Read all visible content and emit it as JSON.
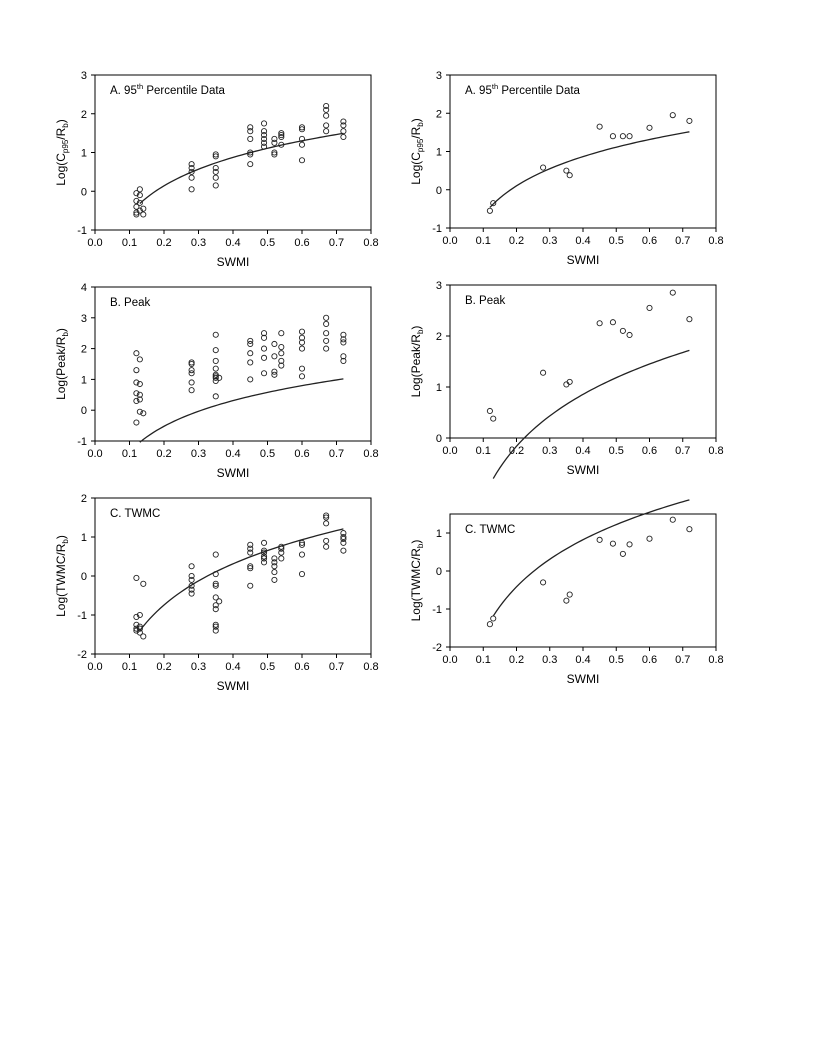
{
  "chart_data": [
    {
      "type": "scatter",
      "panel_label": "A. 95",
      "panel_label_sup": "th",
      "panel_label_rest": " Percentile Data",
      "xlabel": "SWMI",
      "ylabel_main": "Log(C",
      "ylabel_sub1": "p95",
      "ylabel_mid": "/R",
      "ylabel_sub2": "b",
      "ylabel_end": ")",
      "xlim": [
        0.0,
        0.8
      ],
      "ylim": [
        -1,
        3
      ],
      "xticks": [
        "0.0",
        "0.1",
        "0.2",
        "0.3",
        "0.4",
        "0.5",
        "0.6",
        "0.7",
        "0.8"
      ],
      "yticks": [
        "-1",
        "0",
        "1",
        "2",
        "3"
      ],
      "points": [
        [
          0.12,
          -0.05
        ],
        [
          0.12,
          -0.25
        ],
        [
          0.12,
          -0.4
        ],
        [
          0.12,
          -0.55
        ],
        [
          0.12,
          -0.6
        ],
        [
          0.13,
          0.05
        ],
        [
          0.13,
          -0.1
        ],
        [
          0.13,
          -0.3
        ],
        [
          0.13,
          -0.5
        ],
        [
          0.14,
          -0.45
        ],
        [
          0.14,
          -0.6
        ],
        [
          0.28,
          0.7
        ],
        [
          0.28,
          0.6
        ],
        [
          0.28,
          0.5
        ],
        [
          0.28,
          0.35
        ],
        [
          0.28,
          0.05
        ],
        [
          0.35,
          0.95
        ],
        [
          0.35,
          0.9
        ],
        [
          0.35,
          0.6
        ],
        [
          0.35,
          0.5
        ],
        [
          0.35,
          0.35
        ],
        [
          0.35,
          0.15
        ],
        [
          0.45,
          1.65
        ],
        [
          0.45,
          1.55
        ],
        [
          0.45,
          1.35
        ],
        [
          0.45,
          1.0
        ],
        [
          0.45,
          0.95
        ],
        [
          0.45,
          0.7
        ],
        [
          0.49,
          1.75
        ],
        [
          0.49,
          1.55
        ],
        [
          0.49,
          1.45
        ],
        [
          0.49,
          1.35
        ],
        [
          0.49,
          1.25
        ],
        [
          0.49,
          1.15
        ],
        [
          0.52,
          1.35
        ],
        [
          0.52,
          1.25
        ],
        [
          0.52,
          1.0
        ],
        [
          0.52,
          0.95
        ],
        [
          0.54,
          1.5
        ],
        [
          0.54,
          1.45
        ],
        [
          0.54,
          1.4
        ],
        [
          0.54,
          1.2
        ],
        [
          0.6,
          1.65
        ],
        [
          0.6,
          1.6
        ],
        [
          0.6,
          1.35
        ],
        [
          0.6,
          1.2
        ],
        [
          0.6,
          0.8
        ],
        [
          0.67,
          2.2
        ],
        [
          0.67,
          2.1
        ],
        [
          0.67,
          1.95
        ],
        [
          0.67,
          1.7
        ],
        [
          0.67,
          1.55
        ],
        [
          0.72,
          1.8
        ],
        [
          0.72,
          1.7
        ],
        [
          0.72,
          1.55
        ],
        [
          0.72,
          1.4
        ]
      ],
      "fit": {
        "a": 2.435,
        "b": 1.842,
        "x_range": [
          0.13,
          0.72
        ]
      }
    },
    {
      "type": "scatter",
      "panel_label": "A. 95",
      "panel_label_sup": "th",
      "panel_label_rest": " Percentile Data",
      "xlabel": "SWMI",
      "ylabel_main": "Log(C",
      "ylabel_sub1": "p95",
      "ylabel_mid": "/R",
      "ylabel_sub2": "b",
      "ylabel_end": ")",
      "xlim": [
        0.0,
        0.8
      ],
      "ylim": [
        -1,
        3
      ],
      "xticks": [
        "0.0",
        "0.1",
        "0.2",
        "0.3",
        "0.4",
        "0.5",
        "0.6",
        "0.7",
        "0.8"
      ],
      "yticks": [
        "-1",
        "0",
        "1",
        "2",
        "3"
      ],
      "points": [
        [
          0.12,
          -0.55
        ],
        [
          0.13,
          -0.35
        ],
        [
          0.28,
          0.58
        ],
        [
          0.35,
          0.5
        ],
        [
          0.36,
          0.38
        ],
        [
          0.45,
          1.65
        ],
        [
          0.49,
          1.4
        ],
        [
          0.52,
          1.4
        ],
        [
          0.54,
          1.4
        ],
        [
          0.6,
          1.62
        ],
        [
          0.67,
          1.95
        ],
        [
          0.72,
          1.8
        ]
      ],
      "fit": {
        "a": 2.54,
        "b": 1.877,
        "x_range": [
          0.12,
          0.72
        ]
      }
    },
    {
      "type": "scatter",
      "panel_label": "B. Peak",
      "xlabel": "SWMI",
      "ylabel_main": "Log(Peak/R",
      "ylabel_sub2": "b",
      "ylabel_end": ")",
      "xlim": [
        0.0,
        0.8
      ],
      "ylim": [
        -1,
        4
      ],
      "xticks": [
        "0.0",
        "0.1",
        "0.2",
        "0.3",
        "0.4",
        "0.5",
        "0.6",
        "0.7",
        "0.8"
      ],
      "yticks": [
        "-1",
        "0",
        "1",
        "2",
        "3",
        "4"
      ],
      "points": [
        [
          0.12,
          1.85
        ],
        [
          0.12,
          1.3
        ],
        [
          0.12,
          0.9
        ],
        [
          0.12,
          0.55
        ],
        [
          0.12,
          0.3
        ],
        [
          0.12,
          -0.4
        ],
        [
          0.13,
          1.65
        ],
        [
          0.13,
          0.85
        ],
        [
          0.13,
          0.5
        ],
        [
          0.13,
          0.35
        ],
        [
          0.13,
          -0.05
        ],
        [
          0.14,
          -0.1
        ],
        [
          0.28,
          1.55
        ],
        [
          0.28,
          1.5
        ],
        [
          0.28,
          1.3
        ],
        [
          0.28,
          1.2
        ],
        [
          0.28,
          0.9
        ],
        [
          0.28,
          0.65
        ],
        [
          0.35,
          2.45
        ],
        [
          0.35,
          1.95
        ],
        [
          0.35,
          1.6
        ],
        [
          0.35,
          1.35
        ],
        [
          0.35,
          1.15
        ],
        [
          0.35,
          1.1
        ],
        [
          0.35,
          1.05
        ],
        [
          0.35,
          0.95
        ],
        [
          0.35,
          0.45
        ],
        [
          0.36,
          1.05
        ],
        [
          0.45,
          2.25
        ],
        [
          0.45,
          2.15
        ],
        [
          0.45,
          1.85
        ],
        [
          0.45,
          1.55
        ],
        [
          0.45,
          1.0
        ],
        [
          0.49,
          2.5
        ],
        [
          0.49,
          2.35
        ],
        [
          0.49,
          2.0
        ],
        [
          0.49,
          1.7
        ],
        [
          0.49,
          1.2
        ],
        [
          0.52,
          2.15
        ],
        [
          0.52,
          1.75
        ],
        [
          0.52,
          1.25
        ],
        [
          0.52,
          1.15
        ],
        [
          0.54,
          2.5
        ],
        [
          0.54,
          2.05
        ],
        [
          0.54,
          1.85
        ],
        [
          0.54,
          1.6
        ],
        [
          0.54,
          1.45
        ],
        [
          0.6,
          2.55
        ],
        [
          0.6,
          2.35
        ],
        [
          0.6,
          2.2
        ],
        [
          0.6,
          2.0
        ],
        [
          0.6,
          1.35
        ],
        [
          0.6,
          1.1
        ],
        [
          0.67,
          3.0
        ],
        [
          0.67,
          2.8
        ],
        [
          0.67,
          2.5
        ],
        [
          0.67,
          2.25
        ],
        [
          0.67,
          2.0
        ],
        [
          0.72,
          2.45
        ],
        [
          0.72,
          2.3
        ],
        [
          0.72,
          2.2
        ],
        [
          0.72,
          1.75
        ],
        [
          0.72,
          1.6
        ]
      ],
      "fit": {
        "a": 2.766,
        "b": 1.411,
        "x_range": [
          0.13,
          0.72
        ]
      }
    },
    {
      "type": "scatter",
      "panel_label": "B. Peak",
      "xlabel": "SWMI",
      "ylabel_main": "Log(Peak/R",
      "ylabel_sub2": "b",
      "ylabel_end": ")",
      "xlim": [
        0.0,
        0.8
      ],
      "ylim": [
        0,
        3
      ],
      "xticks": [
        "0.0",
        "0.1",
        "0.2",
        "0.3",
        "0.4",
        "0.5",
        "0.6",
        "0.7",
        "0.8"
      ],
      "yticks": [
        "0",
        "1",
        "2",
        "3"
      ],
      "points": [
        [
          0.12,
          0.53
        ],
        [
          0.13,
          0.38
        ],
        [
          0.28,
          1.28
        ],
        [
          0.35,
          1.05
        ],
        [
          0.36,
          1.1
        ],
        [
          0.45,
          2.25
        ],
        [
          0.49,
          2.27
        ],
        [
          0.52,
          2.1
        ],
        [
          0.54,
          2.02
        ],
        [
          0.6,
          2.55
        ],
        [
          0.67,
          2.85
        ],
        [
          0.72,
          2.33
        ]
      ],
      "fit": {
        "a": 3.38,
        "b": 2.2,
        "x_range": [
          0.13,
          0.72
        ]
      }
    },
    {
      "type": "scatter",
      "panel_label": "C. TWMC",
      "xlabel": "SWMI",
      "ylabel_main": "Log(TWMC/R",
      "ylabel_sub2": "b",
      "ylabel_end": ")",
      "xlim": [
        0.0,
        0.8
      ],
      "ylim": [
        -2,
        2
      ],
      "xticks": [
        "0.0",
        "0.1",
        "0.2",
        "0.3",
        "0.4",
        "0.5",
        "0.6",
        "0.7",
        "0.8"
      ],
      "yticks": [
        "-2",
        "-1",
        "0",
        "1",
        "2"
      ],
      "points": [
        [
          0.12,
          -0.05
        ],
        [
          0.12,
          -1.05
        ],
        [
          0.12,
          -1.25
        ],
        [
          0.12,
          -1.35
        ],
        [
          0.12,
          -1.4
        ],
        [
          0.13,
          -1.0
        ],
        [
          0.13,
          -1.3
        ],
        [
          0.13,
          -1.35
        ],
        [
          0.13,
          -1.45
        ],
        [
          0.14,
          -0.2
        ],
        [
          0.14,
          -1.55
        ],
        [
          0.28,
          0.25
        ],
        [
          0.28,
          0.0
        ],
        [
          0.28,
          -0.1
        ],
        [
          0.28,
          -0.25
        ],
        [
          0.28,
          -0.35
        ],
        [
          0.28,
          -0.45
        ],
        [
          0.35,
          0.55
        ],
        [
          0.35,
          0.05
        ],
        [
          0.35,
          -0.2
        ],
        [
          0.35,
          -0.25
        ],
        [
          0.35,
          -0.55
        ],
        [
          0.35,
          -0.75
        ],
        [
          0.35,
          -0.85
        ],
        [
          0.35,
          -1.25
        ],
        [
          0.35,
          -1.3
        ],
        [
          0.35,
          -1.4
        ],
        [
          0.36,
          -0.65
        ],
        [
          0.45,
          0.8
        ],
        [
          0.45,
          0.7
        ],
        [
          0.45,
          0.6
        ],
        [
          0.45,
          0.25
        ],
        [
          0.45,
          0.2
        ],
        [
          0.45,
          -0.25
        ],
        [
          0.49,
          0.85
        ],
        [
          0.49,
          0.65
        ],
        [
          0.49,
          0.6
        ],
        [
          0.49,
          0.5
        ],
        [
          0.49,
          0.45
        ],
        [
          0.49,
          0.35
        ],
        [
          0.52,
          0.45
        ],
        [
          0.52,
          0.35
        ],
        [
          0.52,
          0.25
        ],
        [
          0.52,
          0.1
        ],
        [
          0.52,
          -0.1
        ],
        [
          0.54,
          0.75
        ],
        [
          0.54,
          0.7
        ],
        [
          0.54,
          0.6
        ],
        [
          0.54,
          0.45
        ],
        [
          0.6,
          0.85
        ],
        [
          0.6,
          0.8
        ],
        [
          0.6,
          0.55
        ],
        [
          0.6,
          0.05
        ],
        [
          0.67,
          1.55
        ],
        [
          0.67,
          1.5
        ],
        [
          0.67,
          1.35
        ],
        [
          0.67,
          0.9
        ],
        [
          0.67,
          0.75
        ],
        [
          0.72,
          1.1
        ],
        [
          0.72,
          1.0
        ],
        [
          0.72,
          0.95
        ],
        [
          0.72,
          0.85
        ],
        [
          0.72,
          0.65
        ]
      ],
      "fit": {
        "a": 3.508,
        "b": 1.708,
        "x_range": [
          0.13,
          0.72
        ]
      }
    },
    {
      "type": "scatter",
      "panel_label": "C. TWMC",
      "xlabel": "SWMI",
      "ylabel_main": "Log(TWMC/R",
      "ylabel_sub2": "b",
      "ylabel_end": ")",
      "xlim": [
        0.0,
        0.8
      ],
      "ylim": [
        -2,
        1.5
      ],
      "xticks": [
        "0.0",
        "0.1",
        "0.2",
        "0.3",
        "0.4",
        "0.5",
        "0.6",
        "0.7",
        "0.8"
      ],
      "yticks": [
        "-2",
        "-1",
        "0",
        "1"
      ],
      "points": [
        [
          0.12,
          -1.4
        ],
        [
          0.13,
          -1.25
        ],
        [
          0.28,
          -0.3
        ],
        [
          0.35,
          -0.78
        ],
        [
          0.36,
          -0.62
        ],
        [
          0.45,
          0.82
        ],
        [
          0.49,
          0.72
        ],
        [
          0.52,
          0.45
        ],
        [
          0.54,
          0.7
        ],
        [
          0.6,
          0.85
        ],
        [
          0.67,
          1.35
        ],
        [
          0.72,
          1.1
        ]
      ],
      "fit": {
        "a": 4.115,
        "b": 2.46,
        "x_range": [
          0.13,
          0.72
        ]
      }
    }
  ]
}
